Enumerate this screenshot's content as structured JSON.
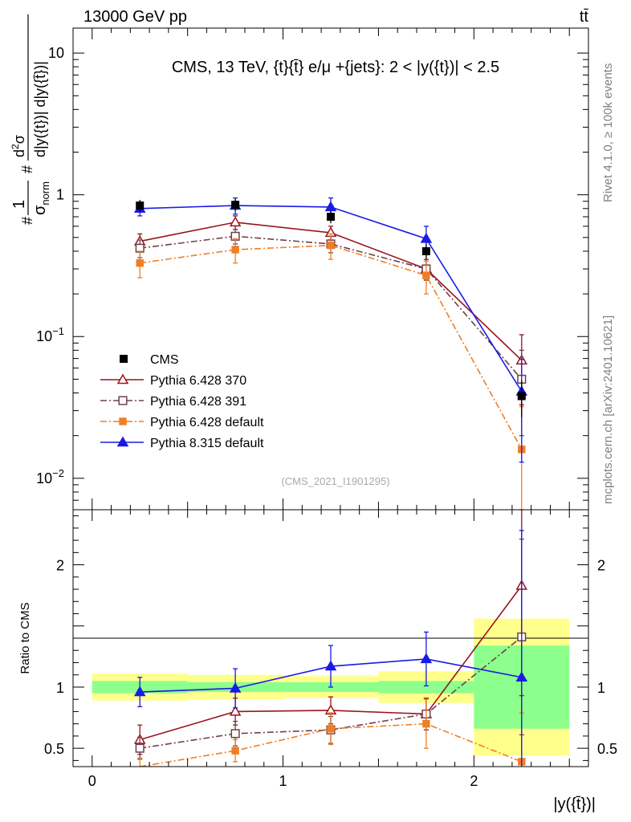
{
  "header": {
    "left": "13000 GeV pp",
    "right": "tt̄"
  },
  "side_text": {
    "rivet": "Rivet 4.1.0, ≥ 100k events",
    "mcplots": "mcplots.cern.ch [arXiv:2401.10621]"
  },
  "chart_data": {
    "type": "line",
    "title": "CMS, 13 TeV, {t}{t̄} e/μ +{jets}: 2 < |y({t})| < 2.5",
    "watermark": "(CMS_2021_I1901295)",
    "xlabel": "|y({t̄})|",
    "ylabel_main": "#(1/σ_norm) #d²σ/d|y({t})| d|y({t̄})|",
    "ylabel_main_parts": {
      "one": "1",
      "sigma": "σ",
      "norm": "norm",
      "d2sigma": "d",
      "two": "2",
      "sigma2": "σ",
      "den": "d|y({t})| d|y({t̄})|",
      "hash": "#"
    },
    "ylabel_ratio": "Ratio to CMS",
    "x_range": [
      -0.1,
      2.6
    ],
    "y_range_main": [
      0.006,
      15
    ],
    "y_scale_main": "log",
    "y_range_ratio": [
      0.35,
      2.45
    ],
    "x_ticks": [
      {
        "value": 0,
        "label": "0"
      },
      {
        "value": 1,
        "label": "1"
      },
      {
        "value": 2,
        "label": "2"
      }
    ],
    "y_ticks_main": [
      {
        "value": 0.01,
        "base": "10",
        "exp": "−2"
      },
      {
        "value": 0.1,
        "base": "10",
        "exp": "−1"
      },
      {
        "value": 1,
        "base": "1",
        "exp": ""
      },
      {
        "value": 10,
        "base": "10",
        "exp": ""
      }
    ],
    "y_ticks_ratio": [
      {
        "value": 0.5,
        "label": "0.5"
      },
      {
        "value": 1,
        "label": "1"
      },
      {
        "value": 2,
        "label": "2"
      }
    ],
    "bins": [
      {
        "lo": 0.0,
        "hi": 0.5
      },
      {
        "lo": 0.5,
        "hi": 1.0
      },
      {
        "lo": 1.0,
        "hi": 1.5
      },
      {
        "lo": 1.5,
        "hi": 2.0
      },
      {
        "lo": 2.0,
        "hi": 2.5
      }
    ],
    "data": {
      "name": "CMS",
      "x": [
        0.25,
        0.75,
        1.25,
        1.75,
        2.25
      ],
      "y": [
        0.84,
        0.85,
        0.7,
        0.4,
        0.038
      ],
      "err": [
        0.08,
        0.08,
        0.07,
        0.05,
        0.011
      ],
      "band_stat": [
        0.05,
        0.04,
        0.04,
        0.05,
        0.34
      ],
      "band_total": [
        0.11,
        0.1,
        0.09,
        0.13,
        0.56
      ]
    },
    "series": [
      {
        "name": "Pythia 6.428 370",
        "color": "#99141e",
        "marker": "triangle-open",
        "dash": "",
        "x": [
          0.25,
          0.75,
          1.25,
          1.75,
          2.25
        ],
        "y": [
          0.47,
          0.64,
          0.54,
          0.3,
          0.068
        ],
        "err": [
          0.06,
          0.07,
          0.06,
          0.05,
          0.035
        ],
        "ratio": [
          0.57,
          0.8,
          0.81,
          0.78,
          1.83
        ],
        "ratio_err": [
          0.12,
          0.11,
          0.11,
          0.13,
          0.9
        ]
      },
      {
        "name": "Pythia 6.428 391",
        "color": "#704048",
        "marker": "square-open",
        "dash": "8,3,2,3",
        "x": [
          0.25,
          0.75,
          1.25,
          1.75,
          2.25
        ],
        "y": [
          0.42,
          0.51,
          0.45,
          0.3,
          0.05
        ],
        "err": [
          0.06,
          0.06,
          0.06,
          0.05,
          0.03
        ],
        "ratio": [
          0.5,
          0.62,
          0.65,
          0.78,
          1.41
        ],
        "ratio_err": [
          0.09,
          0.1,
          0.11,
          0.13,
          0.8
        ]
      },
      {
        "name": "Pythia 6.428 default",
        "color": "#f07e24",
        "marker": "square-filled",
        "dash": "8,3,2,3",
        "x": [
          0.25,
          0.75,
          1.25,
          1.75,
          2.25
        ],
        "y": [
          0.33,
          0.41,
          0.44,
          0.27,
          0.016
        ],
        "err": [
          0.07,
          0.08,
          0.09,
          0.07,
          0.016
        ],
        "ratio": [
          0.34,
          0.48,
          0.66,
          0.7,
          0.39
        ],
        "ratio_err": [
          0.08,
          0.09,
          0.13,
          0.2,
          0.4
        ]
      },
      {
        "name": "Pythia 8.315 default",
        "color": "#1a1ae6",
        "marker": "triangle-filled",
        "dash": "",
        "x": [
          0.25,
          0.75,
          1.25,
          1.75,
          2.25
        ],
        "y": [
          0.8,
          0.84,
          0.82,
          0.49,
          0.041
        ],
        "err": [
          0.09,
          0.11,
          0.13,
          0.11,
          0.028
        ],
        "ratio": [
          0.96,
          0.99,
          1.17,
          1.23,
          1.08
        ],
        "ratio_err": [
          0.12,
          0.16,
          0.17,
          0.22,
          1.2
        ]
      }
    ],
    "legend_position": "lower-left"
  }
}
